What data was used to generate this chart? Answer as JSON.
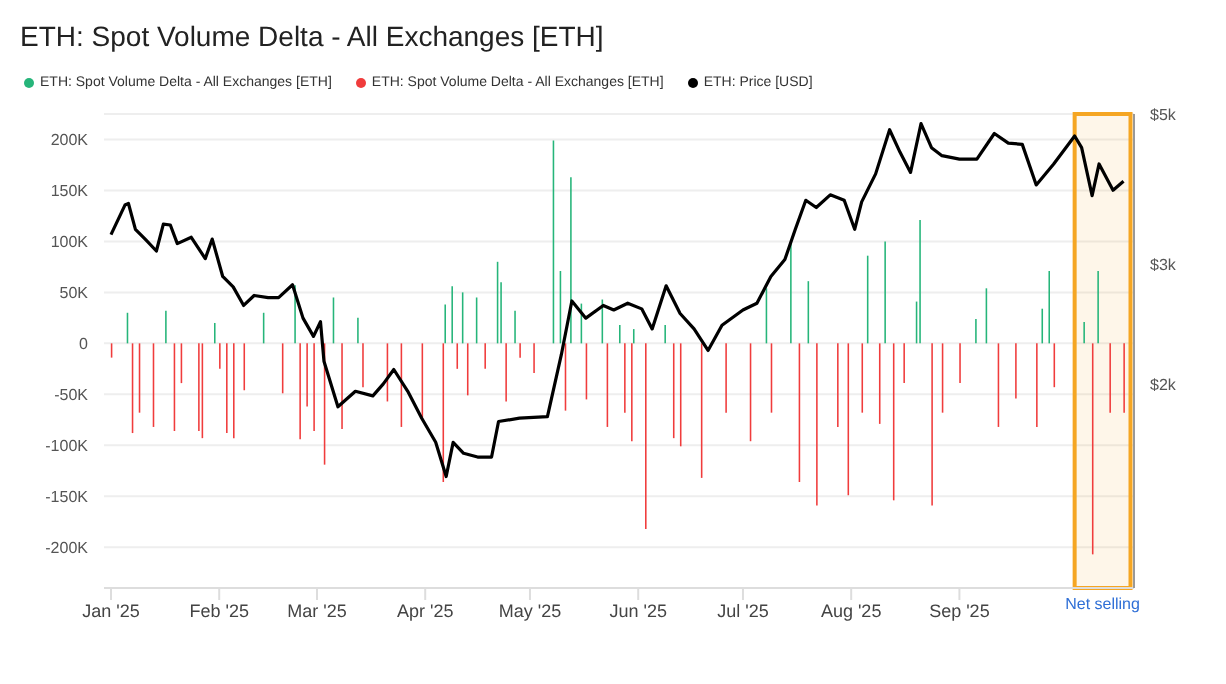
{
  "chart_data": {
    "type": "bar",
    "title": "ETH: Spot Volume Delta - All Exchanges [ETH]",
    "xlim": [
      "2024-12-30",
      "2025-10-21"
    ],
    "xticks": [
      {
        "value": "2025-01-01",
        "label": "Jan '25"
      },
      {
        "value": "2025-02-01",
        "label": "Feb '25"
      },
      {
        "value": "2025-03-01",
        "label": "Mar '25"
      },
      {
        "value": "2025-04-01",
        "label": "Apr '25"
      },
      {
        "value": "2025-05-01",
        "label": "May '25"
      },
      {
        "value": "2025-06-01",
        "label": "Jun '25"
      },
      {
        "value": "2025-07-01",
        "label": "Jul '25"
      },
      {
        "value": "2025-08-01",
        "label": "Aug '25"
      },
      {
        "value": "2025-09-01",
        "label": "Sep '25"
      }
    ],
    "ylim": [
      -240000,
      225000
    ],
    "yticks": [
      {
        "value": -200000,
        "label": "-200K"
      },
      {
        "value": -150000,
        "label": "-150K"
      },
      {
        "value": -100000,
        "label": "-100K"
      },
      {
        "value": -50000,
        "label": "-50K"
      },
      0,
      {
        "value": 50000,
        "label": "50K"
      },
      {
        "value": 100000,
        "label": "100K"
      },
      {
        "value": 150000,
        "label": "150K"
      },
      {
        "value": 200000,
        "label": "200K"
      }
    ],
    "y2lim": [
      1000,
      5000
    ],
    "y2ticks": [
      {
        "value": 2000,
        "label": "$2k"
      },
      {
        "value": 3000,
        "label": "$3k"
      },
      {
        "value": 5000,
        "label": "$5k"
      }
    ],
    "log": "y2",
    "grid": "y",
    "legend": "top left",
    "bands": [
      {
        "axis": "x",
        "from": "2025-10-04",
        "to": "2025-10-20",
        "label": "Net selling",
        "color": "#f5a623"
      }
    ],
    "series": [
      {
        "name": "ETH: Spot Volume Delta - All Exchanges [ETH]",
        "color": "#26b57a",
        "x": [
          "2025-01-06",
          "2025-01-17",
          "2025-01-31",
          "2025-02-14",
          "2025-02-23",
          "2025-03-06",
          "2025-03-13",
          "2025-04-07",
          "2025-04-09",
          "2025-04-12",
          "2025-04-16",
          "2025-04-22",
          "2025-04-23",
          "2025-04-27",
          "2025-05-08",
          "2025-05-10",
          "2025-05-13",
          "2025-05-16",
          "2025-05-22",
          "2025-05-27",
          "2025-05-31",
          "2025-06-09",
          "2025-07-08",
          "2025-07-15",
          "2025-07-20",
          "2025-08-06",
          "2025-08-11",
          "2025-08-20",
          "2025-08-21",
          "2025-09-06",
          "2025-09-09",
          "2025-09-25",
          "2025-09-27",
          "2025-10-07",
          "2025-10-11"
        ],
        "values": [
          30000,
          32000,
          20000,
          30000,
          57000,
          45000,
          25000,
          38000,
          56000,
          50000,
          45000,
          80000,
          60000,
          32000,
          199000,
          71000,
          163000,
          39000,
          43000,
          18000,
          14000,
          18000,
          54000,
          100000,
          61000,
          86000,
          100000,
          41000,
          121000,
          24000,
          54000,
          34000,
          71000,
          21000,
          71000
        ]
      },
      {
        "name": "ETH: Spot Volume Delta - All Exchanges [ETH]",
        "color": "#f03c3c",
        "x": [
          "2025-01-01",
          "2025-01-07",
          "2025-01-09",
          "2025-01-13",
          "2025-01-19",
          "2025-01-21",
          "2025-01-26",
          "2025-01-27",
          "2025-02-01",
          "2025-02-03",
          "2025-02-05",
          "2025-02-08",
          "2025-02-19",
          "2025-02-24",
          "2025-02-26",
          "2025-02-28",
          "2025-03-03",
          "2025-03-08",
          "2025-03-14",
          "2025-03-21",
          "2025-03-25",
          "2025-03-31",
          "2025-04-06",
          "2025-04-10",
          "2025-04-13",
          "2025-04-18",
          "2025-04-24",
          "2025-04-28",
          "2025-05-02",
          "2025-05-11",
          "2025-05-17",
          "2025-05-23",
          "2025-05-28",
          "2025-05-30",
          "2025-06-03",
          "2025-06-11",
          "2025-06-13",
          "2025-06-19",
          "2025-06-26",
          "2025-07-03",
          "2025-07-09",
          "2025-07-17",
          "2025-07-22",
          "2025-07-28",
          "2025-07-31",
          "2025-08-04",
          "2025-08-09",
          "2025-08-13",
          "2025-08-16",
          "2025-08-24",
          "2025-08-27",
          "2025-09-01",
          "2025-09-12",
          "2025-09-17",
          "2025-09-23",
          "2025-09-28",
          "2025-10-09",
          "2025-10-14",
          "2025-10-18"
        ],
        "values": [
          -14000,
          -88000,
          -68000,
          -82000,
          -86000,
          -39000,
          -86000,
          -93000,
          -25000,
          -88000,
          -93000,
          -46000,
          -49000,
          -94000,
          -62000,
          -86000,
          -119000,
          -84000,
          -43000,
          -57000,
          -82000,
          -75000,
          -136000,
          -25000,
          -51000,
          -25000,
          -57000,
          -14000,
          -29000,
          -66000,
          -55000,
          -82000,
          -68000,
          -96000,
          -182000,
          -93000,
          -101000,
          -132000,
          -68000,
          -96000,
          -68000,
          -136000,
          -159000,
          -82000,
          -149000,
          -68000,
          -79000,
          -154000,
          -39000,
          -159000,
          -68000,
          -39000,
          -82000,
          -54000,
          -82000,
          -43000,
          -207000,
          -68000,
          -68000
        ]
      },
      {
        "name": "ETH: Price [USD]",
        "color": "#000000",
        "type": "line",
        "axis": "y2",
        "x": [
          "2025-01-01",
          "2025-01-05",
          "2025-01-06",
          "2025-01-08",
          "2025-01-11",
          "2025-01-14",
          "2025-01-16",
          "2025-01-18",
          "2025-01-20",
          "2025-01-24",
          "2025-01-28",
          "2025-01-30",
          "2025-02-02",
          "2025-02-05",
          "2025-02-08",
          "2025-02-11",
          "2025-02-15",
          "2025-02-18",
          "2025-02-22",
          "2025-02-25",
          "2025-02-28",
          "2025-03-02",
          "2025-03-03",
          "2025-03-07",
          "2025-03-12",
          "2025-03-17",
          "2025-03-20",
          "2025-03-23",
          "2025-03-27",
          "2025-03-31",
          "2025-04-04",
          "2025-04-07",
          "2025-04-09",
          "2025-04-12",
          "2025-04-16",
          "2025-04-20",
          "2025-04-22",
          "2025-04-28",
          "2025-05-06",
          "2025-05-10",
          "2025-05-13",
          "2025-05-17",
          "2025-05-22",
          "2025-05-25",
          "2025-05-29",
          "2025-06-02",
          "2025-06-05",
          "2025-06-09",
          "2025-06-13",
          "2025-06-17",
          "2025-06-21",
          "2025-06-25",
          "2025-07-01",
          "2025-07-05",
          "2025-07-09",
          "2025-07-13",
          "2025-07-16",
          "2025-07-19",
          "2025-07-22",
          "2025-07-26",
          "2025-07-30",
          "2025-08-02",
          "2025-08-04",
          "2025-08-08",
          "2025-08-12",
          "2025-08-15",
          "2025-08-18",
          "2025-08-21",
          "2025-08-24",
          "2025-08-27",
          "2025-09-01",
          "2025-09-06",
          "2025-09-11",
          "2025-09-15",
          "2025-09-19",
          "2025-09-23",
          "2025-09-28",
          "2025-10-04",
          "2025-10-06",
          "2025-10-09",
          "2025-10-11",
          "2025-10-15",
          "2025-10-18"
        ],
        "values": [
          3320,
          3670,
          3690,
          3380,
          3260,
          3140,
          3440,
          3430,
          3220,
          3290,
          3060,
          3270,
          2880,
          2780,
          2610,
          2700,
          2680,
          2680,
          2800,
          2500,
          2350,
          2470,
          2160,
          1850,
          1950,
          1920,
          2000,
          2100,
          1950,
          1780,
          1640,
          1460,
          1640,
          1580,
          1560,
          1560,
          1760,
          1780,
          1790,
          2210,
          2650,
          2500,
          2610,
          2570,
          2630,
          2580,
          2410,
          2790,
          2540,
          2410,
          2240,
          2440,
          2570,
          2630,
          2880,
          3050,
          3380,
          3730,
          3640,
          3800,
          3730,
          3380,
          3710,
          4080,
          4740,
          4390,
          4100,
          4840,
          4460,
          4340,
          4290,
          4290,
          4680,
          4530,
          4510,
          3930,
          4220,
          4640,
          4460,
          3790,
          4220,
          3860,
          3980
        ]
      }
    ]
  }
}
